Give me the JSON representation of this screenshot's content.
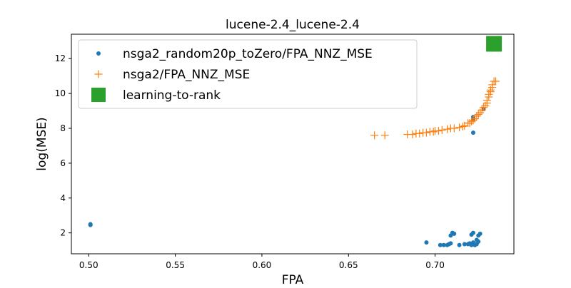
{
  "chart_data": {
    "type": "scatter",
    "title": "lucene-2.4_lucene-2.4",
    "xlabel": "FPA",
    "ylabel": "log(MSE)",
    "xlim": [
      0.49,
      0.7455
    ],
    "ylim": [
      0.8,
      13.4
    ],
    "xticks": [
      0.5,
      0.55,
      0.6,
      0.65,
      0.7
    ],
    "xtick_labels": [
      "0.50",
      "0.55",
      "0.60",
      "0.65",
      "0.70"
    ],
    "yticks": [
      2,
      4,
      6,
      8,
      10,
      12
    ],
    "ytick_labels": [
      "2",
      "4",
      "6",
      "8",
      "10",
      "12"
    ],
    "grid": false,
    "legend_position": "top-left",
    "series": [
      {
        "name": "nsga2_random20p_toZero/FPA_NNZ_MSE",
        "marker": "circle",
        "color": "#1f77b4",
        "points": [
          [
            0.501,
            2.5
          ],
          [
            0.501,
            2.45
          ],
          [
            0.695,
            1.45
          ],
          [
            0.703,
            1.3
          ],
          [
            0.705,
            1.3
          ],
          [
            0.707,
            1.3
          ],
          [
            0.708,
            1.35
          ],
          [
            0.709,
            1.85
          ],
          [
            0.71,
            2.0
          ],
          [
            0.711,
            1.95
          ],
          [
            0.709,
            1.4
          ],
          [
            0.714,
            1.3
          ],
          [
            0.717,
            1.35
          ],
          [
            0.719,
            1.35
          ],
          [
            0.72,
            1.4
          ],
          [
            0.721,
            1.9
          ],
          [
            0.722,
            2.0
          ],
          [
            0.723,
            1.3
          ],
          [
            0.724,
            1.6
          ],
          [
            0.724,
            1.35
          ],
          [
            0.725,
            1.5
          ],
          [
            0.725,
            1.85
          ],
          [
            0.726,
            1.95
          ],
          [
            0.723,
            1.3
          ],
          [
            0.722,
            1.45
          ],
          [
            0.721,
            1.3
          ],
          [
            0.722,
            7.75
          ],
          [
            0.722,
            8.5
          ],
          [
            0.722,
            8.65
          ],
          [
            0.728,
            9.1
          ]
        ]
      },
      {
        "name": "nsga2/FPA_NNZ_MSE",
        "marker": "plus",
        "color": "#ff7f0e",
        "points": [
          [
            0.665,
            7.6
          ],
          [
            0.671,
            7.6
          ],
          [
            0.684,
            7.65
          ],
          [
            0.687,
            7.65
          ],
          [
            0.689,
            7.7
          ],
          [
            0.691,
            7.7
          ],
          [
            0.693,
            7.75
          ],
          [
            0.695,
            7.75
          ],
          [
            0.697,
            7.8
          ],
          [
            0.699,
            7.8
          ],
          [
            0.7,
            7.85
          ],
          [
            0.702,
            7.85
          ],
          [
            0.704,
            7.9
          ],
          [
            0.707,
            7.95
          ],
          [
            0.709,
            8.0
          ],
          [
            0.711,
            8.0
          ],
          [
            0.714,
            8.05
          ],
          [
            0.716,
            8.1
          ],
          [
            0.717,
            8.15
          ],
          [
            0.719,
            8.3
          ],
          [
            0.72,
            8.3
          ],
          [
            0.721,
            8.4
          ],
          [
            0.722,
            8.45
          ],
          [
            0.723,
            8.55
          ],
          [
            0.724,
            8.7
          ],
          [
            0.725,
            8.8
          ],
          [
            0.726,
            8.9
          ],
          [
            0.727,
            9.05
          ],
          [
            0.728,
            9.2
          ],
          [
            0.729,
            9.3
          ],
          [
            0.73,
            9.45
          ],
          [
            0.73,
            9.6
          ],
          [
            0.731,
            9.8
          ],
          [
            0.731,
            9.95
          ],
          [
            0.732,
            10.1
          ],
          [
            0.732,
            10.2
          ],
          [
            0.733,
            10.35
          ],
          [
            0.733,
            10.5
          ],
          [
            0.734,
            10.7
          ],
          [
            0.735,
            10.7
          ]
        ]
      },
      {
        "name": "learning-to-rank",
        "marker": "square",
        "color": "#2ca02c",
        "points": [
          [
            0.734,
            12.85
          ]
        ]
      }
    ]
  }
}
